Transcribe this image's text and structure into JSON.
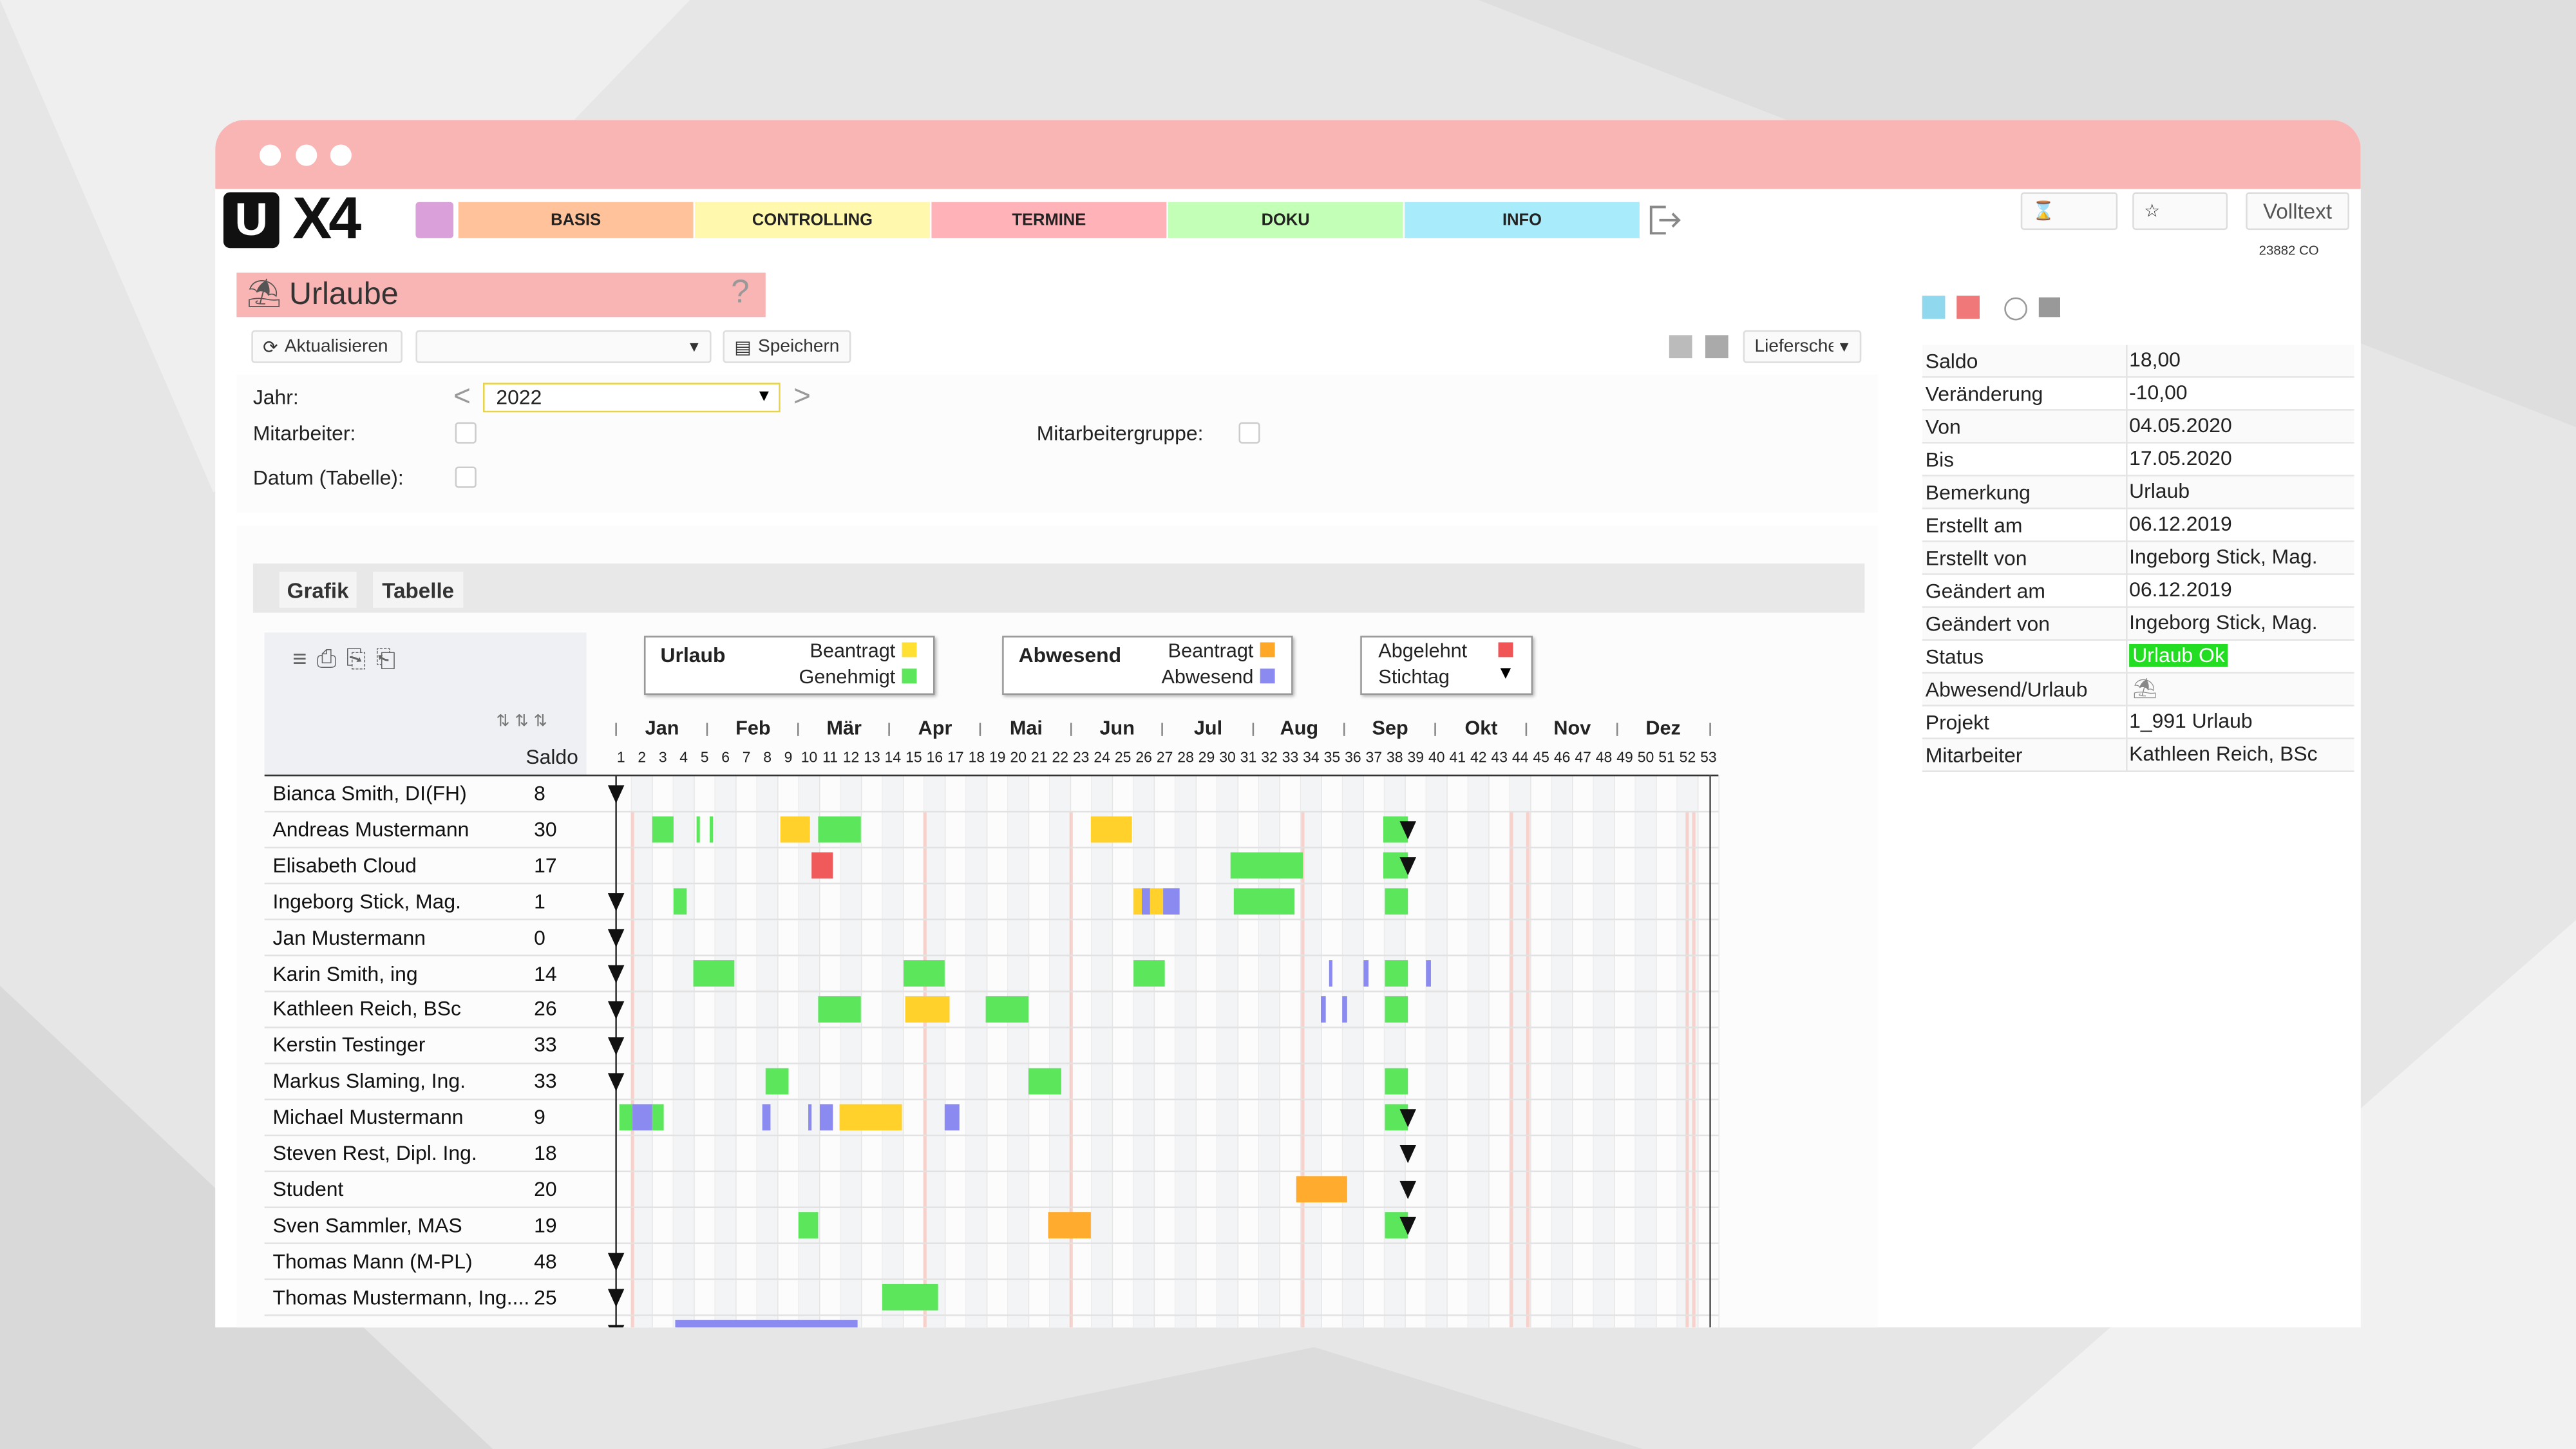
{
  "header": {
    "logo_u": "U",
    "logo_text": "X4",
    "search": "Volltext",
    "user_code": "23882 CO"
  },
  "nav": [
    "BASIS",
    "CONTROLLING",
    "TERMINE",
    "DOKU",
    "INFO"
  ],
  "page": {
    "title": "Urlaube",
    "help": "?"
  },
  "toolbar": {
    "refresh": "Aktualisieren",
    "save": "Speichern",
    "report": "Lieferschein"
  },
  "filters": {
    "year_label": "Jahr:",
    "prev": "<",
    "year": "2022",
    "next": ">",
    "employee_label": "Mitarbeiter:",
    "group_label": "Mitarbeitergruppe:",
    "date_label": "Datum (Tabelle):"
  },
  "tabs": [
    "Grafik",
    "Tabelle"
  ],
  "legend": [
    {
      "title": "Urlaub",
      "items": [
        {
          "label": "Beantragt",
          "color": "#ffe033"
        },
        {
          "label": "Genehmigt",
          "color": "#5ce65c"
        }
      ]
    },
    {
      "title": "Abwesend",
      "items": [
        {
          "label": "Beantragt",
          "color": "#ffa726"
        },
        {
          "label": "Abwesend",
          "color": "#8a8af0"
        }
      ]
    }
  ],
  "legend_extra": {
    "rejected": "Abgelehnt",
    "rejected_color": "#f05454",
    "cutoff": "Stichtag"
  },
  "months": [
    "Jan",
    "Feb",
    "Mär",
    "Apr",
    "Mai",
    "Jun",
    "Jul",
    "Aug",
    "Sep",
    "Okt",
    "Nov",
    "Dez"
  ],
  "weeks": [
    1,
    2,
    3,
    4,
    5,
    6,
    7,
    8,
    9,
    10,
    11,
    12,
    13,
    14,
    15,
    16,
    17,
    18,
    19,
    20,
    21,
    22,
    23,
    24,
    25,
    26,
    27,
    28,
    29,
    30,
    31,
    32,
    33,
    34,
    35,
    36,
    37,
    38,
    39,
    40,
    41,
    42,
    43,
    44,
    45,
    46,
    47,
    48,
    49,
    50,
    51,
    52,
    53
  ],
  "saldo_header": "Saldo",
  "employees": [
    {
      "name": "Bianca Smith, DI(FH)",
      "saldo": "8"
    },
    {
      "name": "Andreas Mustermann",
      "saldo": "30"
    },
    {
      "name": "Elisabeth Cloud",
      "saldo": "17"
    },
    {
      "name": "Ingeborg Stick, Mag.",
      "saldo": "1"
    },
    {
      "name": "Jan Mustermann",
      "saldo": "0"
    },
    {
      "name": "Karin Smith, ing",
      "saldo": "14"
    },
    {
      "name": "Kathleen Reich, BSc",
      "saldo": "26"
    },
    {
      "name": "Kerstin Testinger",
      "saldo": "33"
    },
    {
      "name": "Markus Slaming, Ing.",
      "saldo": "33"
    },
    {
      "name": "Michael Mustermann",
      "saldo": "9"
    },
    {
      "name": "Steven Rest, Dipl. Ing.",
      "saldo": "18"
    },
    {
      "name": "Student",
      "saldo": "20"
    },
    {
      "name": "Sven Sammler, MAS",
      "saldo": "19"
    },
    {
      "name": "Thomas Mann (M-PL)",
      "saldo": "48"
    },
    {
      "name": "Thomas Mustermann, Ing....",
      "saldo": "25"
    }
  ],
  "details": [
    [
      "Saldo",
      "18,00"
    ],
    [
      "Veränderung",
      "-10,00"
    ],
    [
      "Von",
      "04.05.2020"
    ],
    [
      "Bis",
      "17.05.2020"
    ],
    [
      "Bemerkung",
      "Urlaub"
    ],
    [
      "Erstellt am",
      "06.12.2019"
    ],
    [
      "Erstellt von",
      "Ingeborg Stick, Mag."
    ],
    [
      "Geändert am",
      "06.12.2019"
    ],
    [
      "Geändert von",
      "Ingeborg Stick, Mag."
    ],
    [
      "Status",
      "Urlaub Ok"
    ],
    [
      "Abwesend/Urlaub",
      ""
    ],
    [
      "Projekt",
      "1_991 Urlaub"
    ],
    [
      "Mitarbeiter",
      "Kathleen Reich, BSc"
    ]
  ]
}
